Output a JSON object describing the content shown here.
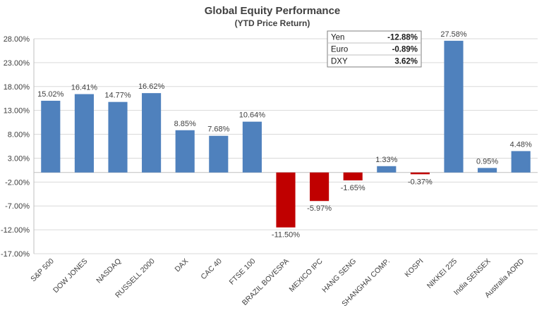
{
  "chart_data": {
    "type": "bar",
    "title": "Global Equity Performance",
    "subtitle": "(YTD Price Return)",
    "categories": [
      "S&P 500",
      "DOW JONES",
      "NASDAQ",
      "RUSSELL 2000",
      "DAX",
      "CAC 40",
      "FTSE 100",
      "BRAZIL BOVESPA",
      "MEXICO IPC",
      "HANG SENG",
      "SHANGHAI COMP.",
      "KOSPI",
      "NIKKEI 225",
      "India SENSEX",
      "Australia AORD"
    ],
    "values": [
      15.02,
      16.41,
      14.77,
      16.62,
      8.85,
      7.68,
      10.64,
      -11.5,
      -5.97,
      -1.65,
      1.33,
      -0.37,
      27.58,
      0.95,
      4.48
    ],
    "data_labels": [
      "15.02%",
      "16.41%",
      "14.77%",
      "16.62%",
      "8.85%",
      "7.68%",
      "10.64%",
      "-11.50%",
      "-5.97%",
      "-1.65%",
      "1.33%",
      "-0.37%",
      "27.58%",
      "0.95%",
      "4.48%"
    ],
    "ylim": [
      -17,
      28
    ],
    "yticks": [
      28,
      23,
      18,
      13,
      8,
      3,
      -2,
      -7,
      -12,
      -17
    ],
    "ytick_labels": [
      "28.00%",
      "23.00%",
      "18.00%",
      "13.00%",
      "8.00%",
      "3.00%",
      "-2.00%",
      "-7.00%",
      "-12.00%",
      "-17.00%"
    ],
    "grid": true,
    "colors": {
      "positive": "#4f81bd",
      "negative": "#c00000"
    },
    "fx_table": [
      {
        "label": "Yen",
        "value": "-12.88%"
      },
      {
        "label": "Euro",
        "value": "-0.89%"
      },
      {
        "label": "DXY",
        "value": "3.62%"
      }
    ]
  }
}
